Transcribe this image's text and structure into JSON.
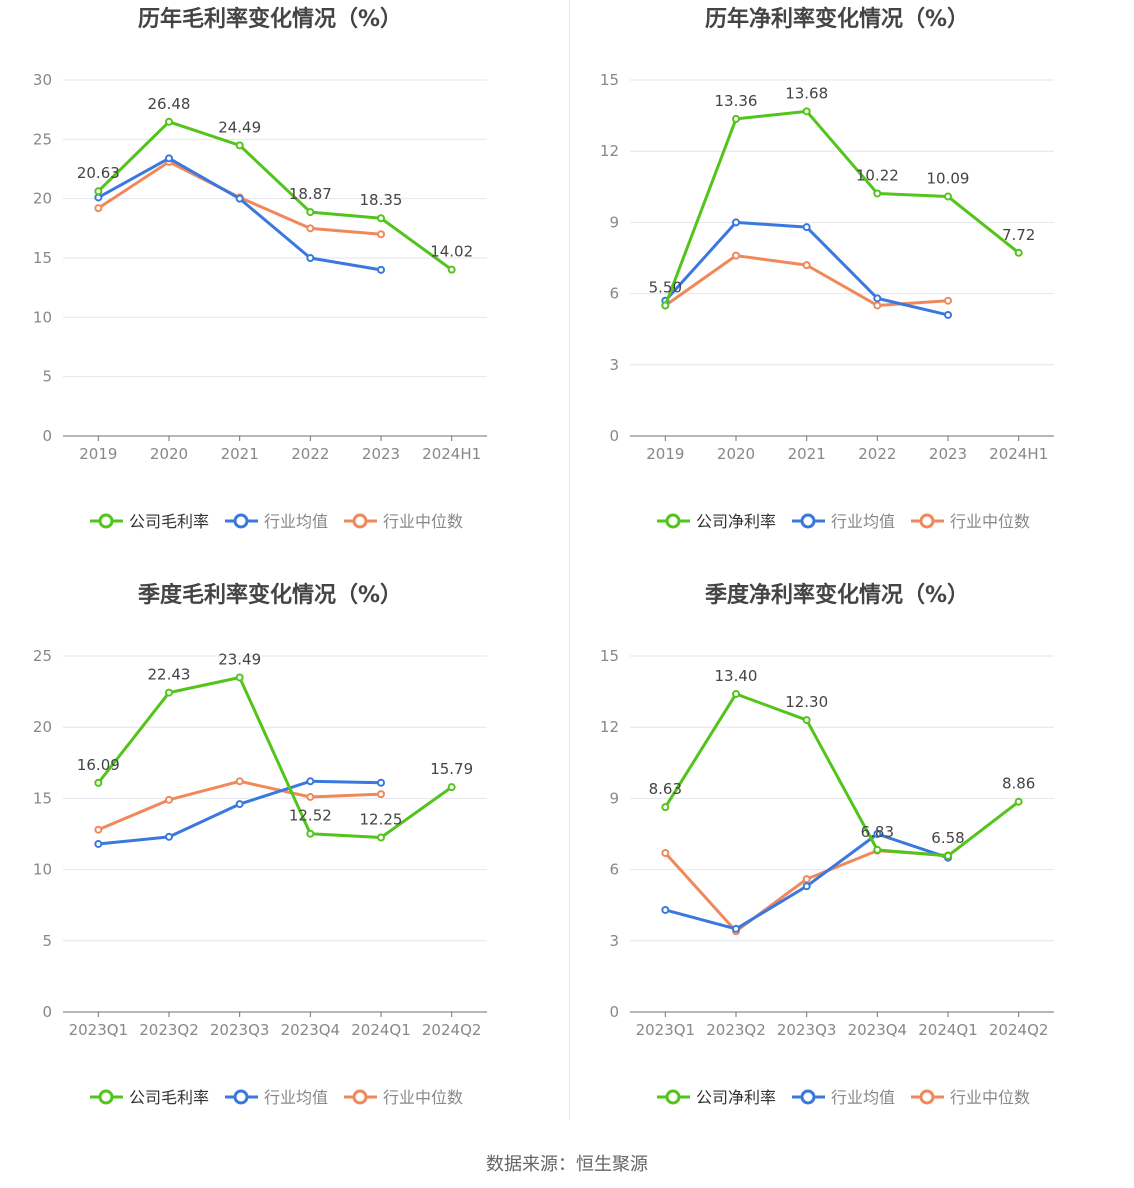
{
  "legend_labels": {
    "company_gross": "公司毛利率",
    "company_net": "公司净利率",
    "industry_avg": "行业均值",
    "industry_median": "行业中位数"
  },
  "colors": {
    "company": "#52c41a",
    "industry_avg": "#3a78e0",
    "industry_median": "#f0885a"
  },
  "source": "数据来源：恒生聚源",
  "chart_data": [
    {
      "type": "line",
      "title": "历年毛利率变化情况（%）",
      "categories": [
        "2019",
        "2020",
        "2021",
        "2022",
        "2023",
        "2024H1"
      ],
      "ylim": [
        0,
        30
      ],
      "yticks": [
        0,
        5,
        10,
        15,
        20,
        25,
        30
      ],
      "series": [
        {
          "name": "公司毛利率",
          "values": [
            20.63,
            26.48,
            24.49,
            18.87,
            18.35,
            14.02
          ],
          "labels": [
            "20.63",
            "26.48",
            "24.49",
            "18.87",
            "18.35",
            "14.02"
          ]
        },
        {
          "name": "行业均值",
          "values": [
            20.1,
            23.4,
            20.0,
            15.0,
            14.0,
            null
          ]
        },
        {
          "name": "行业中位数",
          "values": [
            19.2,
            23.1,
            20.1,
            17.5,
            17.0,
            null
          ]
        }
      ]
    },
    {
      "type": "line",
      "title": "历年净利率变化情况（%）",
      "categories": [
        "2019",
        "2020",
        "2021",
        "2022",
        "2023",
        "2024H1"
      ],
      "ylim": [
        0,
        15
      ],
      "yticks": [
        0,
        3,
        6,
        9,
        12,
        15
      ],
      "series": [
        {
          "name": "公司净利率",
          "values": [
            5.5,
            13.36,
            13.68,
            10.22,
            10.09,
            7.72
          ],
          "labels": [
            "5.50",
            "13.36",
            "13.68",
            "10.22",
            "10.09",
            "7.72"
          ]
        },
        {
          "name": "行业均值",
          "values": [
            5.7,
            9.0,
            8.8,
            5.8,
            5.1,
            null
          ]
        },
        {
          "name": "行业中位数",
          "values": [
            5.5,
            7.6,
            7.2,
            5.5,
            5.7,
            null
          ]
        }
      ]
    },
    {
      "type": "line",
      "title": "季度毛利率变化情况（%）",
      "categories": [
        "2023Q1",
        "2023Q2",
        "2023Q3",
        "2023Q4",
        "2024Q1",
        "2024Q2"
      ],
      "ylim": [
        0,
        25
      ],
      "yticks": [
        0,
        5,
        10,
        15,
        20,
        25
      ],
      "series": [
        {
          "name": "公司毛利率",
          "values": [
            16.09,
            22.43,
            23.49,
            12.52,
            12.25,
            15.79
          ],
          "labels": [
            "16.09",
            "22.43",
            "23.49",
            "12.52",
            "12.25",
            "15.79"
          ]
        },
        {
          "name": "行业均值",
          "values": [
            11.8,
            12.3,
            14.6,
            16.2,
            16.1,
            null
          ]
        },
        {
          "name": "行业中位数",
          "values": [
            12.8,
            14.9,
            16.2,
            15.1,
            15.3,
            null
          ]
        }
      ]
    },
    {
      "type": "line",
      "title": "季度净利率变化情况（%）",
      "categories": [
        "2023Q1",
        "2023Q2",
        "2023Q3",
        "2023Q4",
        "2024Q1",
        "2024Q2"
      ],
      "ylim": [
        0,
        15
      ],
      "yticks": [
        0,
        3,
        6,
        9,
        12,
        15
      ],
      "series": [
        {
          "name": "公司净利率",
          "values": [
            8.63,
            13.4,
            12.3,
            6.83,
            6.58,
            8.86
          ],
          "labels": [
            "8.63",
            "13.40",
            "12.30",
            "6.83",
            "6.58",
            "8.86"
          ]
        },
        {
          "name": "行业均值",
          "values": [
            4.3,
            3.5,
            5.3,
            7.5,
            6.5,
            null
          ]
        },
        {
          "name": "行业中位数",
          "values": [
            6.7,
            3.4,
            5.6,
            6.8,
            6.6,
            null
          ]
        }
      ]
    }
  ]
}
